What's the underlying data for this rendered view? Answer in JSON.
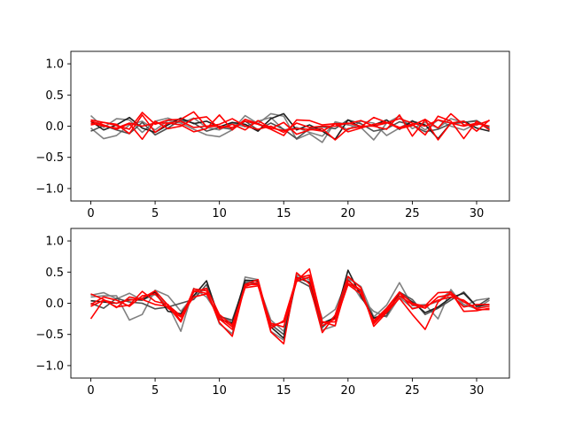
{
  "chart_data": [
    {
      "type": "line",
      "title": "",
      "xlabel": "",
      "ylabel": "",
      "xlim": [
        -1.55,
        32.55
      ],
      "ylim": [
        -1.2,
        1.2
      ],
      "xticks": [
        0,
        5,
        10,
        15,
        20,
        25,
        30
      ],
      "xtick_labels": [
        "0",
        "5",
        "10",
        "15",
        "20",
        "25",
        "30"
      ],
      "yticks": [
        1.0,
        0.5,
        0.0,
        -0.5,
        -1.0
      ],
      "ytick_labels": [
        "1.0",
        "0.5",
        "0.0",
        "−0.5",
        "−1.0"
      ],
      "grid": false,
      "legend": "none",
      "x": [
        0,
        1,
        2,
        3,
        4,
        5,
        6,
        7,
        8,
        9,
        10,
        11,
        12,
        13,
        14,
        15,
        16,
        17,
        18,
        19,
        20,
        21,
        22,
        23,
        24,
        25,
        26,
        27,
        28,
        29,
        30,
        31
      ],
      "series": [
        {
          "color": "#808080",
          "values": [
            0.17,
            -0.02,
            0.12,
            0.1,
            -0.1,
            0.08,
            0.13,
            0.05,
            -0.05,
            -0.14,
            -0.17,
            -0.06,
            0.17,
            0.04,
            0.2,
            0.16,
            -0.21,
            -0.12,
            -0.26,
            0.07,
            0.02,
            -0.02,
            -0.22,
            0.05,
            0.16,
            -0.04,
            0.06,
            -0.03,
            0.12,
            0.06,
            0.08,
            -0.05
          ]
        },
        {
          "color": "#808080",
          "values": [
            -0.03,
            -0.2,
            -0.15,
            0.02,
            0.08,
            -0.06,
            0.09,
            0.05,
            0.13,
            -0.02,
            -0.06,
            0.05,
            -0.01,
            0.08,
            0.14,
            -0.06,
            -0.02,
            -0.1,
            -0.16,
            0.05,
            -0.06,
            0.08,
            0.05,
            -0.15,
            -0.03,
            0.09,
            -0.06,
            0.1,
            0.0,
            -0.06,
            0.04,
            0.0
          ]
        },
        {
          "color": "#505050",
          "values": [
            -0.08,
            0.01,
            -0.06,
            -0.12,
            0.06,
            -0.14,
            -0.03,
            0.1,
            0.05,
            -0.08,
            -0.02,
            -0.05,
            0.08,
            -0.06,
            0.05,
            -0.05,
            -0.2,
            -0.04,
            -0.01,
            -0.04,
            0.1,
            0.04,
            -0.08,
            -0.04,
            0.07,
            0.02,
            -0.09,
            -0.05,
            0.04,
            0.06,
            0.09,
            -0.03
          ]
        },
        {
          "color": "#202020",
          "values": [
            0.08,
            -0.06,
            0.02,
            0.14,
            -0.03,
            -0.1,
            0.02,
            0.13,
            0.04,
            0.08,
            -0.01,
            0.06,
            0.03,
            -0.08,
            0.12,
            0.2,
            -0.06,
            0.02,
            -0.08,
            -0.21,
            0.1,
            -0.02,
            0.02,
            0.1,
            -0.05,
            0.08,
            0.02,
            -0.2,
            0.05,
            0.08,
            -0.03,
            -0.08
          ]
        },
        {
          "color": "#ff0000",
          "values": [
            0.02,
            0.06,
            0.01,
            -0.05,
            0.22,
            0.03,
            0.1,
            0.11,
            0.23,
            -0.01,
            0.0,
            -0.02,
            0.08,
            0.03,
            -0.05,
            -0.15,
            0.1,
            0.09,
            0.02,
            0.04,
            -0.09,
            -0.03,
            0.03,
            0.06,
            -0.04,
            0.01,
            0.11,
            -0.03,
            0.2,
            0.02,
            0.02,
            0.09
          ]
        },
        {
          "color": "#ff0000",
          "values": [
            0.1,
            0.06,
            0.03,
            -0.12,
            0.18,
            -0.1,
            0.05,
            0.02,
            -0.09,
            -0.04,
            0.18,
            -0.06,
            0.11,
            0.04,
            -0.04,
            0.06,
            -0.13,
            -0.06,
            -0.04,
            -0.22,
            -0.04,
            -0.01,
            0.14,
            0.06,
            -0.02,
            0.03,
            -0.14,
            0.16,
            0.08,
            -0.2,
            0.08,
            -0.06
          ]
        },
        {
          "color": "#ff0000",
          "values": [
            0.08,
            0.02,
            -0.05,
            0.04,
            -0.21,
            0.08,
            -0.04,
            0.0,
            0.12,
            0.15,
            -0.04,
            0.03,
            -0.06,
            0.09,
            -0.03,
            -0.07,
            -0.04,
            -0.05,
            -0.08,
            0.04,
            0.04,
            0.09,
            0.0,
            -0.05,
            0.18,
            -0.16,
            0.1,
            -0.22,
            0.05,
            0.08,
            -0.08,
            0.1
          ]
        },
        {
          "color": "#ff0000",
          "values": [
            0.05,
            0.0,
            -0.03,
            0.05,
            0.0,
            0.05,
            0.05,
            0.08,
            -0.02,
            0.0,
            0.03,
            0.12,
            0.0,
            -0.05,
            0.0,
            -0.1,
            0.05,
            -0.02,
            0.0,
            0.0,
            0.05,
            0.0,
            0.0,
            0.05,
            0.12,
            0.05,
            0.0,
            0.1,
            0.05,
            0.0,
            0.05,
            0.0
          ]
        }
      ]
    },
    {
      "type": "line",
      "title": "",
      "xlabel": "",
      "ylabel": "",
      "xlim": [
        -1.55,
        32.55
      ],
      "ylim": [
        -1.2,
        1.2
      ],
      "xticks": [
        0,
        5,
        10,
        15,
        20,
        25,
        30
      ],
      "xtick_labels": [
        "0",
        "5",
        "10",
        "15",
        "20",
        "25",
        "30"
      ],
      "yticks": [
        1.0,
        0.5,
        0.0,
        -0.5,
        -1.0
      ],
      "ytick_labels": [
        "1.0",
        "0.5",
        "0.0",
        "−0.5",
        "−1.0"
      ],
      "grid": false,
      "legend": "none",
      "x": [
        0,
        1,
        2,
        3,
        4,
        5,
        6,
        7,
        8,
        9,
        10,
        11,
        12,
        13,
        14,
        15,
        16,
        17,
        18,
        19,
        20,
        21,
        22,
        23,
        24,
        25,
        26,
        27,
        28,
        29,
        30,
        31
      ],
      "series": [
        {
          "color": "#808080",
          "values": [
            0.13,
            0.17,
            0.07,
            0.16,
            0.05,
            0.14,
            -0.03,
            -0.45,
            0.24,
            0.1,
            -0.21,
            -0.3,
            0.36,
            0.31,
            -0.27,
            -0.45,
            0.45,
            0.38,
            -0.25,
            -0.1,
            0.4,
            0.27,
            -0.22,
            -0.03,
            0.33,
            -0.04,
            -0.02,
            -0.25,
            0.22,
            -0.05,
            0.05,
            0.08
          ]
        },
        {
          "color": "#808080",
          "values": [
            0.1,
            0.12,
            0.12,
            -0.27,
            -0.18,
            0.21,
            0.12,
            -0.13,
            0.12,
            0.24,
            -0.33,
            -0.49,
            0.42,
            0.38,
            -0.45,
            -0.59,
            0.4,
            0.35,
            -0.43,
            -0.36,
            0.4,
            0.08,
            -0.13,
            -0.22,
            0.1,
            -0.08,
            -0.04,
            0.03,
            0.2,
            -0.02,
            -0.09,
            0.05
          ]
        },
        {
          "color": "#505050",
          "values": [
            0.0,
            -0.08,
            0.08,
            0.02,
            0.0,
            -0.09,
            -0.06,
            0.0,
            0.06,
            0.3,
            -0.21,
            -0.27,
            0.33,
            0.32,
            -0.34,
            -0.5,
            0.38,
            0.27,
            -0.39,
            -0.2,
            0.37,
            0.18,
            -0.24,
            -0.2,
            0.18,
            0.06,
            -0.18,
            -0.08,
            0.05,
            0.18,
            -0.05,
            0.08
          ]
        },
        {
          "color": "#202020",
          "values": [
            0.04,
            0.02,
            0.0,
            0.06,
            0.05,
            0.18,
            -0.13,
            -0.17,
            0.12,
            0.36,
            -0.26,
            -0.32,
            0.37,
            0.36,
            -0.38,
            -0.56,
            0.42,
            0.33,
            -0.32,
            -0.23,
            0.53,
            0.12,
            -0.24,
            -0.16,
            0.16,
            0.02,
            -0.15,
            -0.06,
            0.09,
            0.16,
            -0.05,
            -0.02
          ]
        },
        {
          "color": "#ff0000",
          "values": [
            -0.25,
            0.05,
            -0.06,
            -0.03,
            0.19,
            0.03,
            -0.02,
            -0.28,
            0.23,
            0.2,
            -0.31,
            -0.53,
            0.3,
            0.3,
            -0.46,
            -0.65,
            0.49,
            0.31,
            -0.47,
            -0.19,
            0.43,
            0.25,
            -0.37,
            -0.15,
            0.08,
            -0.18,
            -0.42,
            0.02,
            0.17,
            0.02,
            -0.08,
            -0.05
          ]
        },
        {
          "color": "#ff0000",
          "values": [
            0.15,
            0.06,
            -0.07,
            0.1,
            0.06,
            -0.02,
            -0.05,
            -0.3,
            0.18,
            0.24,
            -0.18,
            -0.35,
            0.27,
            0.34,
            -0.36,
            -0.3,
            0.36,
            0.55,
            -0.3,
            -0.36,
            0.36,
            0.21,
            -0.31,
            -0.09,
            0.17,
            -0.09,
            -0.04,
            0.17,
            0.18,
            -0.13,
            -0.12,
            -0.08
          ]
        },
        {
          "color": "#ff0000",
          "values": [
            -0.05,
            0.05,
            0.0,
            0.05,
            0.08,
            0.2,
            -0.03,
            -0.2,
            0.1,
            0.15,
            -0.25,
            -0.42,
            0.3,
            0.38,
            -0.4,
            -0.28,
            0.4,
            0.45,
            -0.3,
            -0.3,
            0.3,
            0.15,
            -0.28,
            -0.08,
            0.18,
            0.0,
            -0.05,
            0.05,
            0.1,
            0.05,
            -0.1,
            -0.1
          ]
        },
        {
          "color": "#ff0000",
          "values": [
            -0.02,
            0.1,
            0.05,
            -0.05,
            0.12,
            0.15,
            -0.08,
            -0.22,
            0.2,
            0.16,
            -0.22,
            -0.38,
            0.25,
            0.28,
            -0.32,
            -0.38,
            0.35,
            0.42,
            -0.36,
            -0.25,
            0.32,
            0.2,
            -0.33,
            -0.12,
            0.12,
            -0.02,
            -0.08,
            0.1,
            0.14,
            -0.06,
            -0.02,
            -0.02
          ]
        }
      ]
    }
  ]
}
